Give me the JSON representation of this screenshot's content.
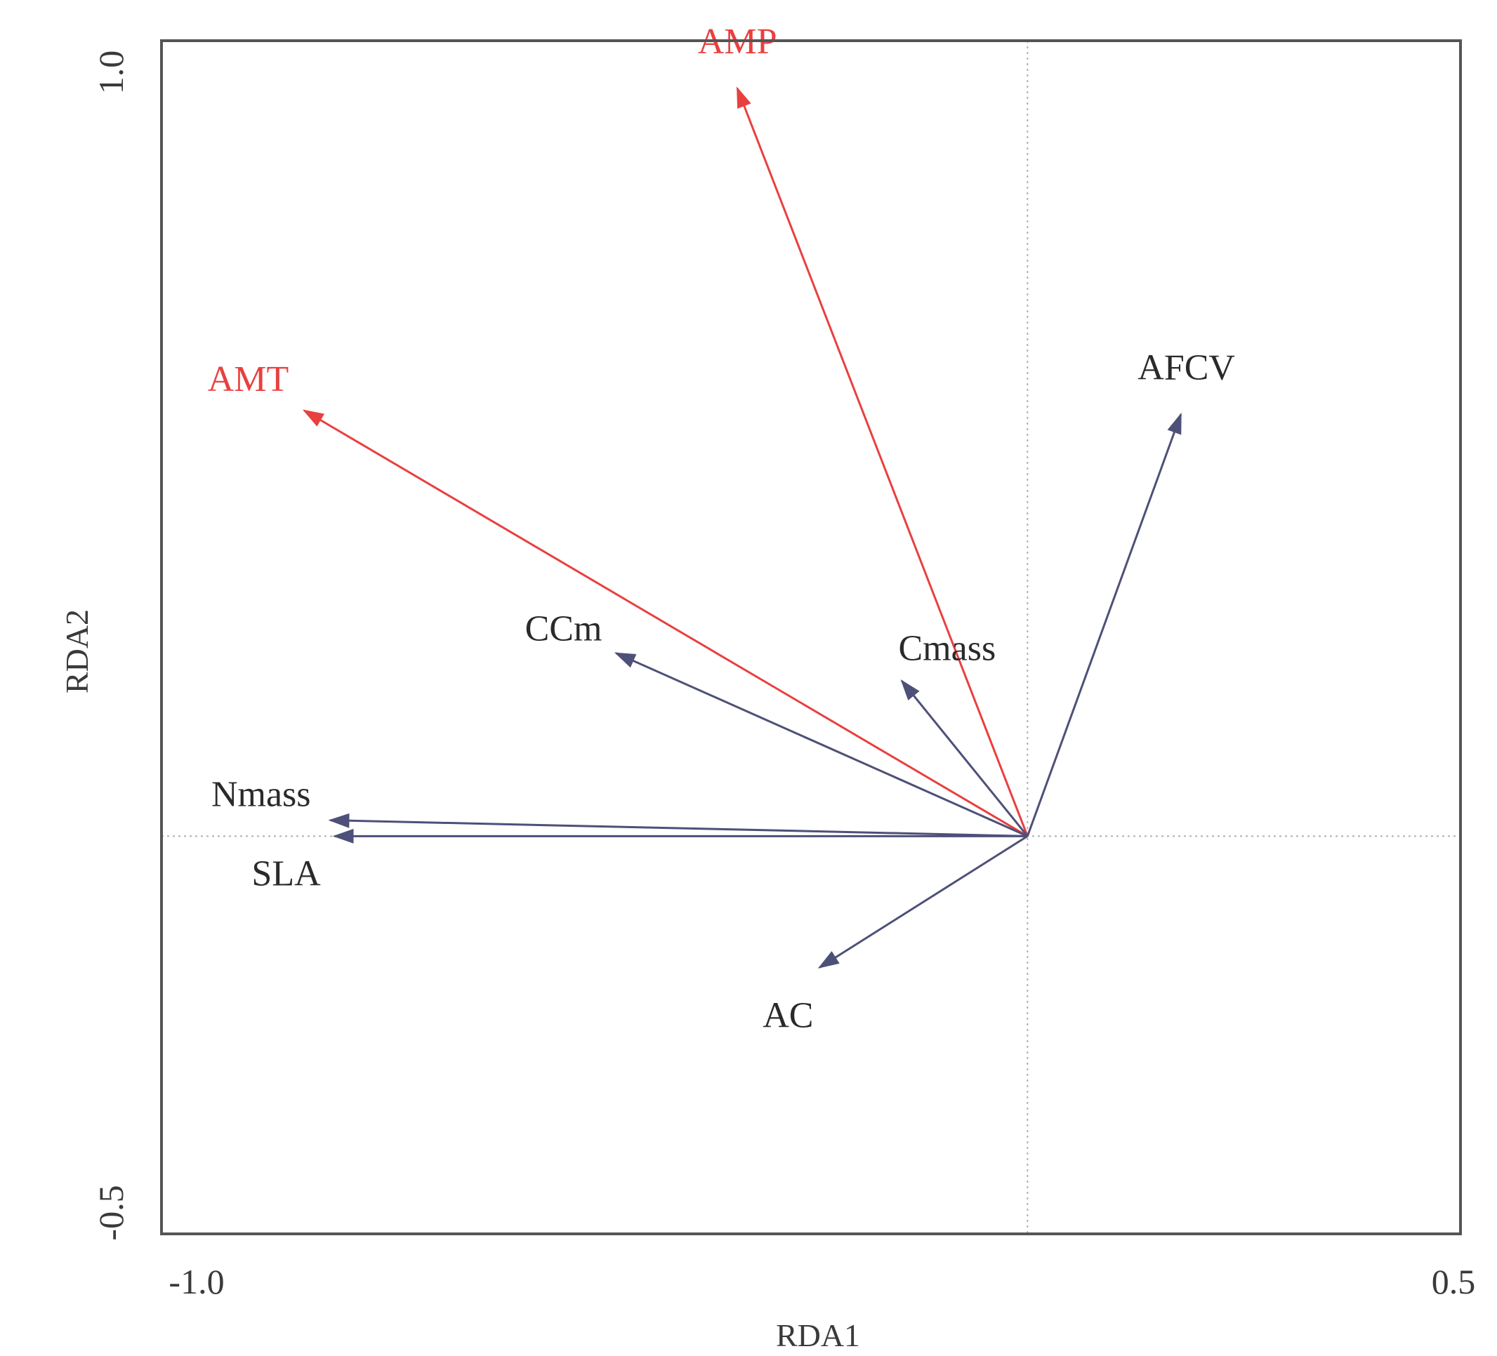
{
  "chart_data": {
    "type": "biplot",
    "xlabel": "RDA1",
    "ylabel": "RDA2",
    "xlim": [
      -1.0,
      0.5
    ],
    "ylim": [
      -0.5,
      1.0
    ],
    "x_ticks": [
      {
        "value": -1.0,
        "label": "-1.0"
      },
      {
        "value": 0.5,
        "label": "0.5"
      }
    ],
    "y_ticks": [
      {
        "value": 1.0,
        "label": "1.0"
      },
      {
        "value": -0.5,
        "label": "-0.5"
      }
    ],
    "reference_lines": {
      "x": 0.0,
      "y": 0.0,
      "style": "dotted"
    },
    "grid": false,
    "colors": {
      "environment": "#e8403f",
      "trait": "#4d5078",
      "frame": "#555555",
      "reference": "#b0b0b0"
    },
    "vectors": [
      {
        "name": "AMP",
        "x": -0.335,
        "y": 0.94,
        "group": "environment"
      },
      {
        "name": "AMT",
        "x": -0.835,
        "y": 0.535,
        "group": "environment"
      },
      {
        "name": "AFCV",
        "x": 0.177,
        "y": 0.53,
        "group": "trait"
      },
      {
        "name": "CCm",
        "x": -0.475,
        "y": 0.23,
        "group": "trait"
      },
      {
        "name": "Cmass",
        "x": -0.145,
        "y": 0.195,
        "group": "trait"
      },
      {
        "name": "Nmass",
        "x": -0.805,
        "y": 0.02,
        "group": "trait"
      },
      {
        "name": "SLA",
        "x": -0.8,
        "y": 0.0,
        "group": "trait"
      },
      {
        "name": "AC",
        "x": -0.24,
        "y": -0.165,
        "group": "trait"
      }
    ]
  }
}
